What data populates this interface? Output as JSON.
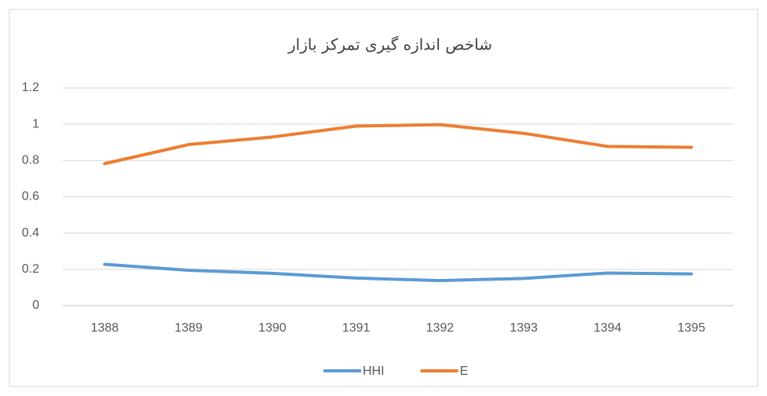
{
  "chart_data": {
    "type": "line",
    "title": "شاخص اندازه گیری تمرکز بازار",
    "categories": [
      "1388",
      "1389",
      "1390",
      "1391",
      "1392",
      "1393",
      "1394",
      "1395"
    ],
    "series": [
      {
        "name": "HHI",
        "color": "#5b9bd5",
        "values": [
          0.228,
          0.195,
          0.178,
          0.152,
          0.138,
          0.15,
          0.18,
          0.175
        ]
      },
      {
        "name": "E",
        "color": "#ed7d31",
        "values": [
          0.783,
          0.888,
          0.93,
          0.99,
          0.998,
          0.95,
          0.878,
          0.873
        ]
      }
    ],
    "ylim": [
      0,
      1.2
    ],
    "yticks": [
      0,
      0.2,
      0.4,
      0.6,
      0.8,
      1,
      1.2
    ],
    "grid": true,
    "legend": "bottom"
  }
}
